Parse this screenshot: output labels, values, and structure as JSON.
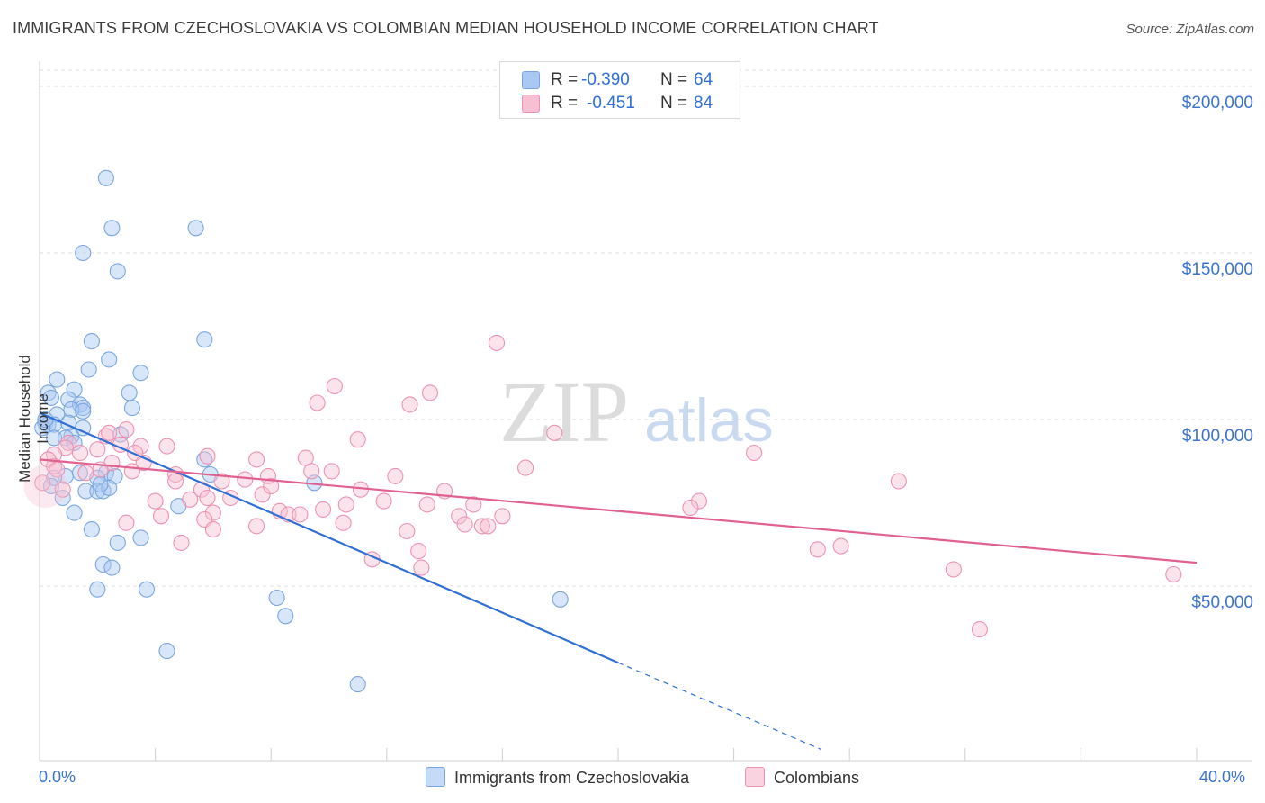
{
  "title": "IMMIGRANTS FROM CZECHOSLOVAKIA VS COLOMBIAN MEDIAN HOUSEHOLD INCOME CORRELATION CHART",
  "source": "Source: ZipAtlas.com",
  "watermark": {
    "zip": "ZIP",
    "atlas": "atlas"
  },
  "legend": [
    {
      "r_label": "R =",
      "r_value": "-0.390",
      "n_label": "N =",
      "n_value": "64",
      "color": "#a9c8f2",
      "border": "#7aa6e0"
    },
    {
      "r_label": "R =",
      "r_value": "-0.451",
      "n_label": "N =",
      "n_value": "84",
      "color": "#f7c0d2",
      "border": "#ec92b0"
    }
  ],
  "bottom_legend": {
    "series1": "Immigrants from Czechoslovakia",
    "series2": "Colombians"
  },
  "x_axis_labels": {
    "min": "0.0%",
    "max": "40.0%"
  },
  "chart_data": {
    "type": "scatter",
    "ylabel": "Median Household Income",
    "xlabel": "",
    "xlim": [
      0,
      40
    ],
    "ylim": [
      0,
      210000
    ],
    "y_ticks": [
      {
        "value": 50000,
        "label": "$50,000"
      },
      {
        "value": 100000,
        "label": "$100,000"
      },
      {
        "value": 150000,
        "label": "$150,000"
      },
      {
        "value": 200000,
        "label": "$200,000"
      }
    ],
    "series": [
      {
        "name": "Immigrants from Czechoslovakia",
        "color": "#7aa6e0",
        "fill": "rgba(169,200,242,0.45)",
        "trend_color": "#2f6fd6",
        "trend": {
          "x0": 0,
          "y0": 102000,
          "x1": 20,
          "y1": 27000,
          "dash_to_x": 27,
          "dash_to_y": 1000
        },
        "points": [
          [
            2.3,
            172500
          ],
          [
            2.5,
            157500
          ],
          [
            5.4,
            157500
          ],
          [
            1.5,
            150000
          ],
          [
            2.7,
            144500
          ],
          [
            1.8,
            123500
          ],
          [
            5.7,
            124000
          ],
          [
            2.4,
            118000
          ],
          [
            1.7,
            115000
          ],
          [
            3.5,
            114000
          ],
          [
            0.6,
            112000
          ],
          [
            1.2,
            109000
          ],
          [
            0.3,
            108000
          ],
          [
            3.1,
            108000
          ],
          [
            0.4,
            106500
          ],
          [
            1.0,
            106000
          ],
          [
            1.4,
            104500
          ],
          [
            1.5,
            103500
          ],
          [
            1.1,
            103000
          ],
          [
            3.2,
            103500
          ],
          [
            1.5,
            102500
          ],
          [
            0.6,
            101500
          ],
          [
            0.2,
            99000
          ],
          [
            0.3,
            98500
          ],
          [
            0.5,
            98500
          ],
          [
            1.0,
            99000
          ],
          [
            1.5,
            97500
          ],
          [
            0.1,
            97500
          ],
          [
            0.5,
            94500
          ],
          [
            1.1,
            95000
          ],
          [
            0.9,
            94500
          ],
          [
            1.2,
            93000
          ],
          [
            2.8,
            95500
          ],
          [
            5.7,
            88000
          ],
          [
            2.3,
            84000
          ],
          [
            0.9,
            83000
          ],
          [
            2.0,
            82500
          ],
          [
            2.6,
            83000
          ],
          [
            5.9,
            83500
          ],
          [
            9.5,
            81000
          ],
          [
            0.5,
            82500
          ],
          [
            1.6,
            78500
          ],
          [
            2.0,
            78500
          ],
          [
            2.2,
            78500
          ],
          [
            2.4,
            79500
          ],
          [
            0.8,
            76500
          ],
          [
            4.8,
            74000
          ],
          [
            1.2,
            72000
          ],
          [
            2.1,
            80500
          ],
          [
            1.8,
            67000
          ],
          [
            3.5,
            64500
          ],
          [
            2.7,
            63000
          ],
          [
            2.2,
            56500
          ],
          [
            2.5,
            55500
          ],
          [
            2.0,
            49000
          ],
          [
            3.7,
            49000
          ],
          [
            8.2,
            46500
          ],
          [
            8.5,
            41000
          ],
          [
            18.0,
            46000
          ],
          [
            4.4,
            30500
          ],
          [
            11.0,
            20500
          ],
          [
            0.4,
            80000
          ],
          [
            1.4,
            84000
          ],
          [
            0.2,
            100000
          ]
        ]
      },
      {
        "name": "Colombians",
        "color": "#ec92b0",
        "fill": "rgba(247,192,210,0.45)",
        "trend_color": "#e0608f",
        "trend": {
          "x0": 0,
          "y0": 88000,
          "x1": 40,
          "y1": 57000
        },
        "points": [
          [
            15.8,
            123000
          ],
          [
            10.2,
            110000
          ],
          [
            13.5,
            108000
          ],
          [
            9.6,
            105000
          ],
          [
            12.8,
            104500
          ],
          [
            3.0,
            97000
          ],
          [
            2.3,
            95000
          ],
          [
            11.0,
            94000
          ],
          [
            17.8,
            96000
          ],
          [
            1.0,
            93000
          ],
          [
            2.8,
            92500
          ],
          [
            3.5,
            92000
          ],
          [
            0.9,
            91500
          ],
          [
            2.0,
            91000
          ],
          [
            3.3,
            90000
          ],
          [
            0.5,
            89500
          ],
          [
            5.8,
            89000
          ],
          [
            7.5,
            88000
          ],
          [
            9.2,
            88500
          ],
          [
            3.6,
            87000
          ],
          [
            2.5,
            87000
          ],
          [
            0.5,
            86000
          ],
          [
            16.8,
            85500
          ],
          [
            2.1,
            85000
          ],
          [
            1.6,
            84000
          ],
          [
            9.4,
            84500
          ],
          [
            10.1,
            84500
          ],
          [
            4.7,
            83500
          ],
          [
            7.9,
            83000
          ],
          [
            12.3,
            83000
          ],
          [
            4.7,
            81500
          ],
          [
            6.3,
            81500
          ],
          [
            7.1,
            82000
          ],
          [
            24.7,
            90000
          ],
          [
            29.7,
            81500
          ],
          [
            5.6,
            79000
          ],
          [
            11.1,
            79000
          ],
          [
            14.0,
            78500
          ],
          [
            7.7,
            77500
          ],
          [
            6.6,
            76500
          ],
          [
            5.8,
            76500
          ],
          [
            5.2,
            76000
          ],
          [
            4.0,
            75500
          ],
          [
            11.9,
            75500
          ],
          [
            10.6,
            74500
          ],
          [
            13.4,
            74500
          ],
          [
            15.0,
            74500
          ],
          [
            22.8,
            75500
          ],
          [
            22.5,
            73500
          ],
          [
            9.8,
            73000
          ],
          [
            8.3,
            72500
          ],
          [
            8.6,
            71500
          ],
          [
            9.0,
            71500
          ],
          [
            6.0,
            72000
          ],
          [
            14.5,
            71000
          ],
          [
            16.0,
            71000
          ],
          [
            10.5,
            69000
          ],
          [
            4.2,
            71000
          ],
          [
            5.7,
            70000
          ],
          [
            7.5,
            68000
          ],
          [
            14.7,
            68500
          ],
          [
            15.3,
            68000
          ],
          [
            15.5,
            68000
          ],
          [
            6.0,
            67000
          ],
          [
            3.0,
            69000
          ],
          [
            12.7,
            66500
          ],
          [
            4.9,
            63000
          ],
          [
            27.7,
            62000
          ],
          [
            26.9,
            61000
          ],
          [
            13.1,
            60500
          ],
          [
            11.5,
            58000
          ],
          [
            13.2,
            55500
          ],
          [
            31.6,
            55000
          ],
          [
            39.2,
            53500
          ],
          [
            32.5,
            37000
          ],
          [
            0.1,
            81000
          ],
          [
            0.3,
            88000
          ],
          [
            1.4,
            90000
          ],
          [
            0.6,
            85000
          ],
          [
            8.0,
            80000
          ],
          [
            4.4,
            92000
          ],
          [
            3.2,
            84500
          ],
          [
            0.8,
            79000
          ],
          [
            2.4,
            96000
          ]
        ]
      }
    ]
  }
}
